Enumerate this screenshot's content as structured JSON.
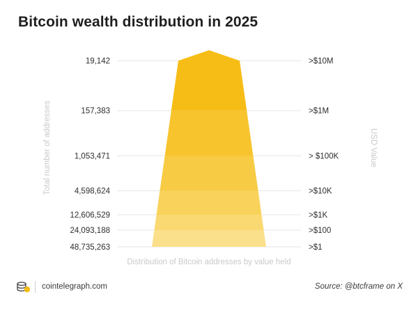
{
  "title": "Bitcoin wealth distribution in 2025",
  "footer": {
    "brand": "cointelegraph.com",
    "source": "Source: @btcframe on X"
  },
  "colors": {
    "levels": [
      "#f6bd16",
      "#f7c42e",
      "#f8cb44",
      "#f9d25b",
      "#fad973",
      "#fbe08b",
      "#fce7a3"
    ],
    "grid": "#e6e6e6",
    "axis_label": "#c9c9c9"
  },
  "chart_data": {
    "type": "funnel",
    "title": "Bitcoin wealth distribution in 2025",
    "ylabel": "Total number of addresses",
    "xlabel": "Distribution of Bitcoin addresses by value held",
    "y2label": "USD Value",
    "categories": [
      ">$10M",
      ">$1M",
      "> $100K",
      ">$10K",
      ">$1K",
      ">$100",
      ">$1"
    ],
    "values": [
      19142,
      157383,
      1053471,
      4598624,
      12606529,
      24093188,
      48735263
    ],
    "value_labels": [
      "19,142",
      "157,383",
      "1,053,471",
      "4,598,624",
      "12,606,529",
      "24,093,188",
      "48,735,263"
    ],
    "grid": true
  }
}
